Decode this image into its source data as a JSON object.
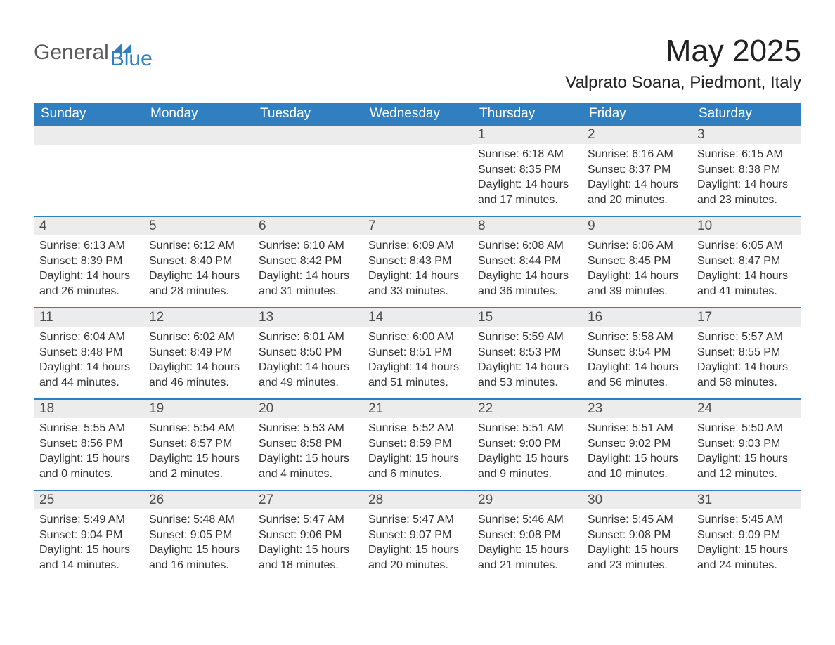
{
  "brand": {
    "text_general": "General",
    "text_blue": "Blue",
    "icon_color": "#2f7fc1",
    "general_color": "#5a5a5a",
    "blue_color": "#2f7fc1"
  },
  "title": "May 2025",
  "location": "Valprato Soana, Piedmont, Italy",
  "colors": {
    "header_bg": "#2f7fc1",
    "header_text": "#ffffff",
    "daynum_bg": "#ececec",
    "daynum_text": "#4d4d4d",
    "body_text": "#333333",
    "row_divider": "#2f7fc1",
    "page_bg": "#ffffff"
  },
  "weekdays": [
    "Sunday",
    "Monday",
    "Tuesday",
    "Wednesday",
    "Thursday",
    "Friday",
    "Saturday"
  ],
  "labels": {
    "sunrise": "Sunrise:",
    "sunset": "Sunset:",
    "daylight": "Daylight:"
  },
  "weeks": [
    [
      null,
      null,
      null,
      null,
      {
        "n": "1",
        "sunrise": "6:18 AM",
        "sunset": "8:35 PM",
        "daylight": "14 hours and 17 minutes."
      },
      {
        "n": "2",
        "sunrise": "6:16 AM",
        "sunset": "8:37 PM",
        "daylight": "14 hours and 20 minutes."
      },
      {
        "n": "3",
        "sunrise": "6:15 AM",
        "sunset": "8:38 PM",
        "daylight": "14 hours and 23 minutes."
      }
    ],
    [
      {
        "n": "4",
        "sunrise": "6:13 AM",
        "sunset": "8:39 PM",
        "daylight": "14 hours and 26 minutes."
      },
      {
        "n": "5",
        "sunrise": "6:12 AM",
        "sunset": "8:40 PM",
        "daylight": "14 hours and 28 minutes."
      },
      {
        "n": "6",
        "sunrise": "6:10 AM",
        "sunset": "8:42 PM",
        "daylight": "14 hours and 31 minutes."
      },
      {
        "n": "7",
        "sunrise": "6:09 AM",
        "sunset": "8:43 PM",
        "daylight": "14 hours and 33 minutes."
      },
      {
        "n": "8",
        "sunrise": "6:08 AM",
        "sunset": "8:44 PM",
        "daylight": "14 hours and 36 minutes."
      },
      {
        "n": "9",
        "sunrise": "6:06 AM",
        "sunset": "8:45 PM",
        "daylight": "14 hours and 39 minutes."
      },
      {
        "n": "10",
        "sunrise": "6:05 AM",
        "sunset": "8:47 PM",
        "daylight": "14 hours and 41 minutes."
      }
    ],
    [
      {
        "n": "11",
        "sunrise": "6:04 AM",
        "sunset": "8:48 PM",
        "daylight": "14 hours and 44 minutes."
      },
      {
        "n": "12",
        "sunrise": "6:02 AM",
        "sunset": "8:49 PM",
        "daylight": "14 hours and 46 minutes."
      },
      {
        "n": "13",
        "sunrise": "6:01 AM",
        "sunset": "8:50 PM",
        "daylight": "14 hours and 49 minutes."
      },
      {
        "n": "14",
        "sunrise": "6:00 AM",
        "sunset": "8:51 PM",
        "daylight": "14 hours and 51 minutes."
      },
      {
        "n": "15",
        "sunrise": "5:59 AM",
        "sunset": "8:53 PM",
        "daylight": "14 hours and 53 minutes."
      },
      {
        "n": "16",
        "sunrise": "5:58 AM",
        "sunset": "8:54 PM",
        "daylight": "14 hours and 56 minutes."
      },
      {
        "n": "17",
        "sunrise": "5:57 AM",
        "sunset": "8:55 PM",
        "daylight": "14 hours and 58 minutes."
      }
    ],
    [
      {
        "n": "18",
        "sunrise": "5:55 AM",
        "sunset": "8:56 PM",
        "daylight": "15 hours and 0 minutes."
      },
      {
        "n": "19",
        "sunrise": "5:54 AM",
        "sunset": "8:57 PM",
        "daylight": "15 hours and 2 minutes."
      },
      {
        "n": "20",
        "sunrise": "5:53 AM",
        "sunset": "8:58 PM",
        "daylight": "15 hours and 4 minutes."
      },
      {
        "n": "21",
        "sunrise": "5:52 AM",
        "sunset": "8:59 PM",
        "daylight": "15 hours and 6 minutes."
      },
      {
        "n": "22",
        "sunrise": "5:51 AM",
        "sunset": "9:00 PM",
        "daylight": "15 hours and 9 minutes."
      },
      {
        "n": "23",
        "sunrise": "5:51 AM",
        "sunset": "9:02 PM",
        "daylight": "15 hours and 10 minutes."
      },
      {
        "n": "24",
        "sunrise": "5:50 AM",
        "sunset": "9:03 PM",
        "daylight": "15 hours and 12 minutes."
      }
    ],
    [
      {
        "n": "25",
        "sunrise": "5:49 AM",
        "sunset": "9:04 PM",
        "daylight": "15 hours and 14 minutes."
      },
      {
        "n": "26",
        "sunrise": "5:48 AM",
        "sunset": "9:05 PM",
        "daylight": "15 hours and 16 minutes."
      },
      {
        "n": "27",
        "sunrise": "5:47 AM",
        "sunset": "9:06 PM",
        "daylight": "15 hours and 18 minutes."
      },
      {
        "n": "28",
        "sunrise": "5:47 AM",
        "sunset": "9:07 PM",
        "daylight": "15 hours and 20 minutes."
      },
      {
        "n": "29",
        "sunrise": "5:46 AM",
        "sunset": "9:08 PM",
        "daylight": "15 hours and 21 minutes."
      },
      {
        "n": "30",
        "sunrise": "5:45 AM",
        "sunset": "9:08 PM",
        "daylight": "15 hours and 23 minutes."
      },
      {
        "n": "31",
        "sunrise": "5:45 AM",
        "sunset": "9:09 PM",
        "daylight": "15 hours and 24 minutes."
      }
    ]
  ]
}
